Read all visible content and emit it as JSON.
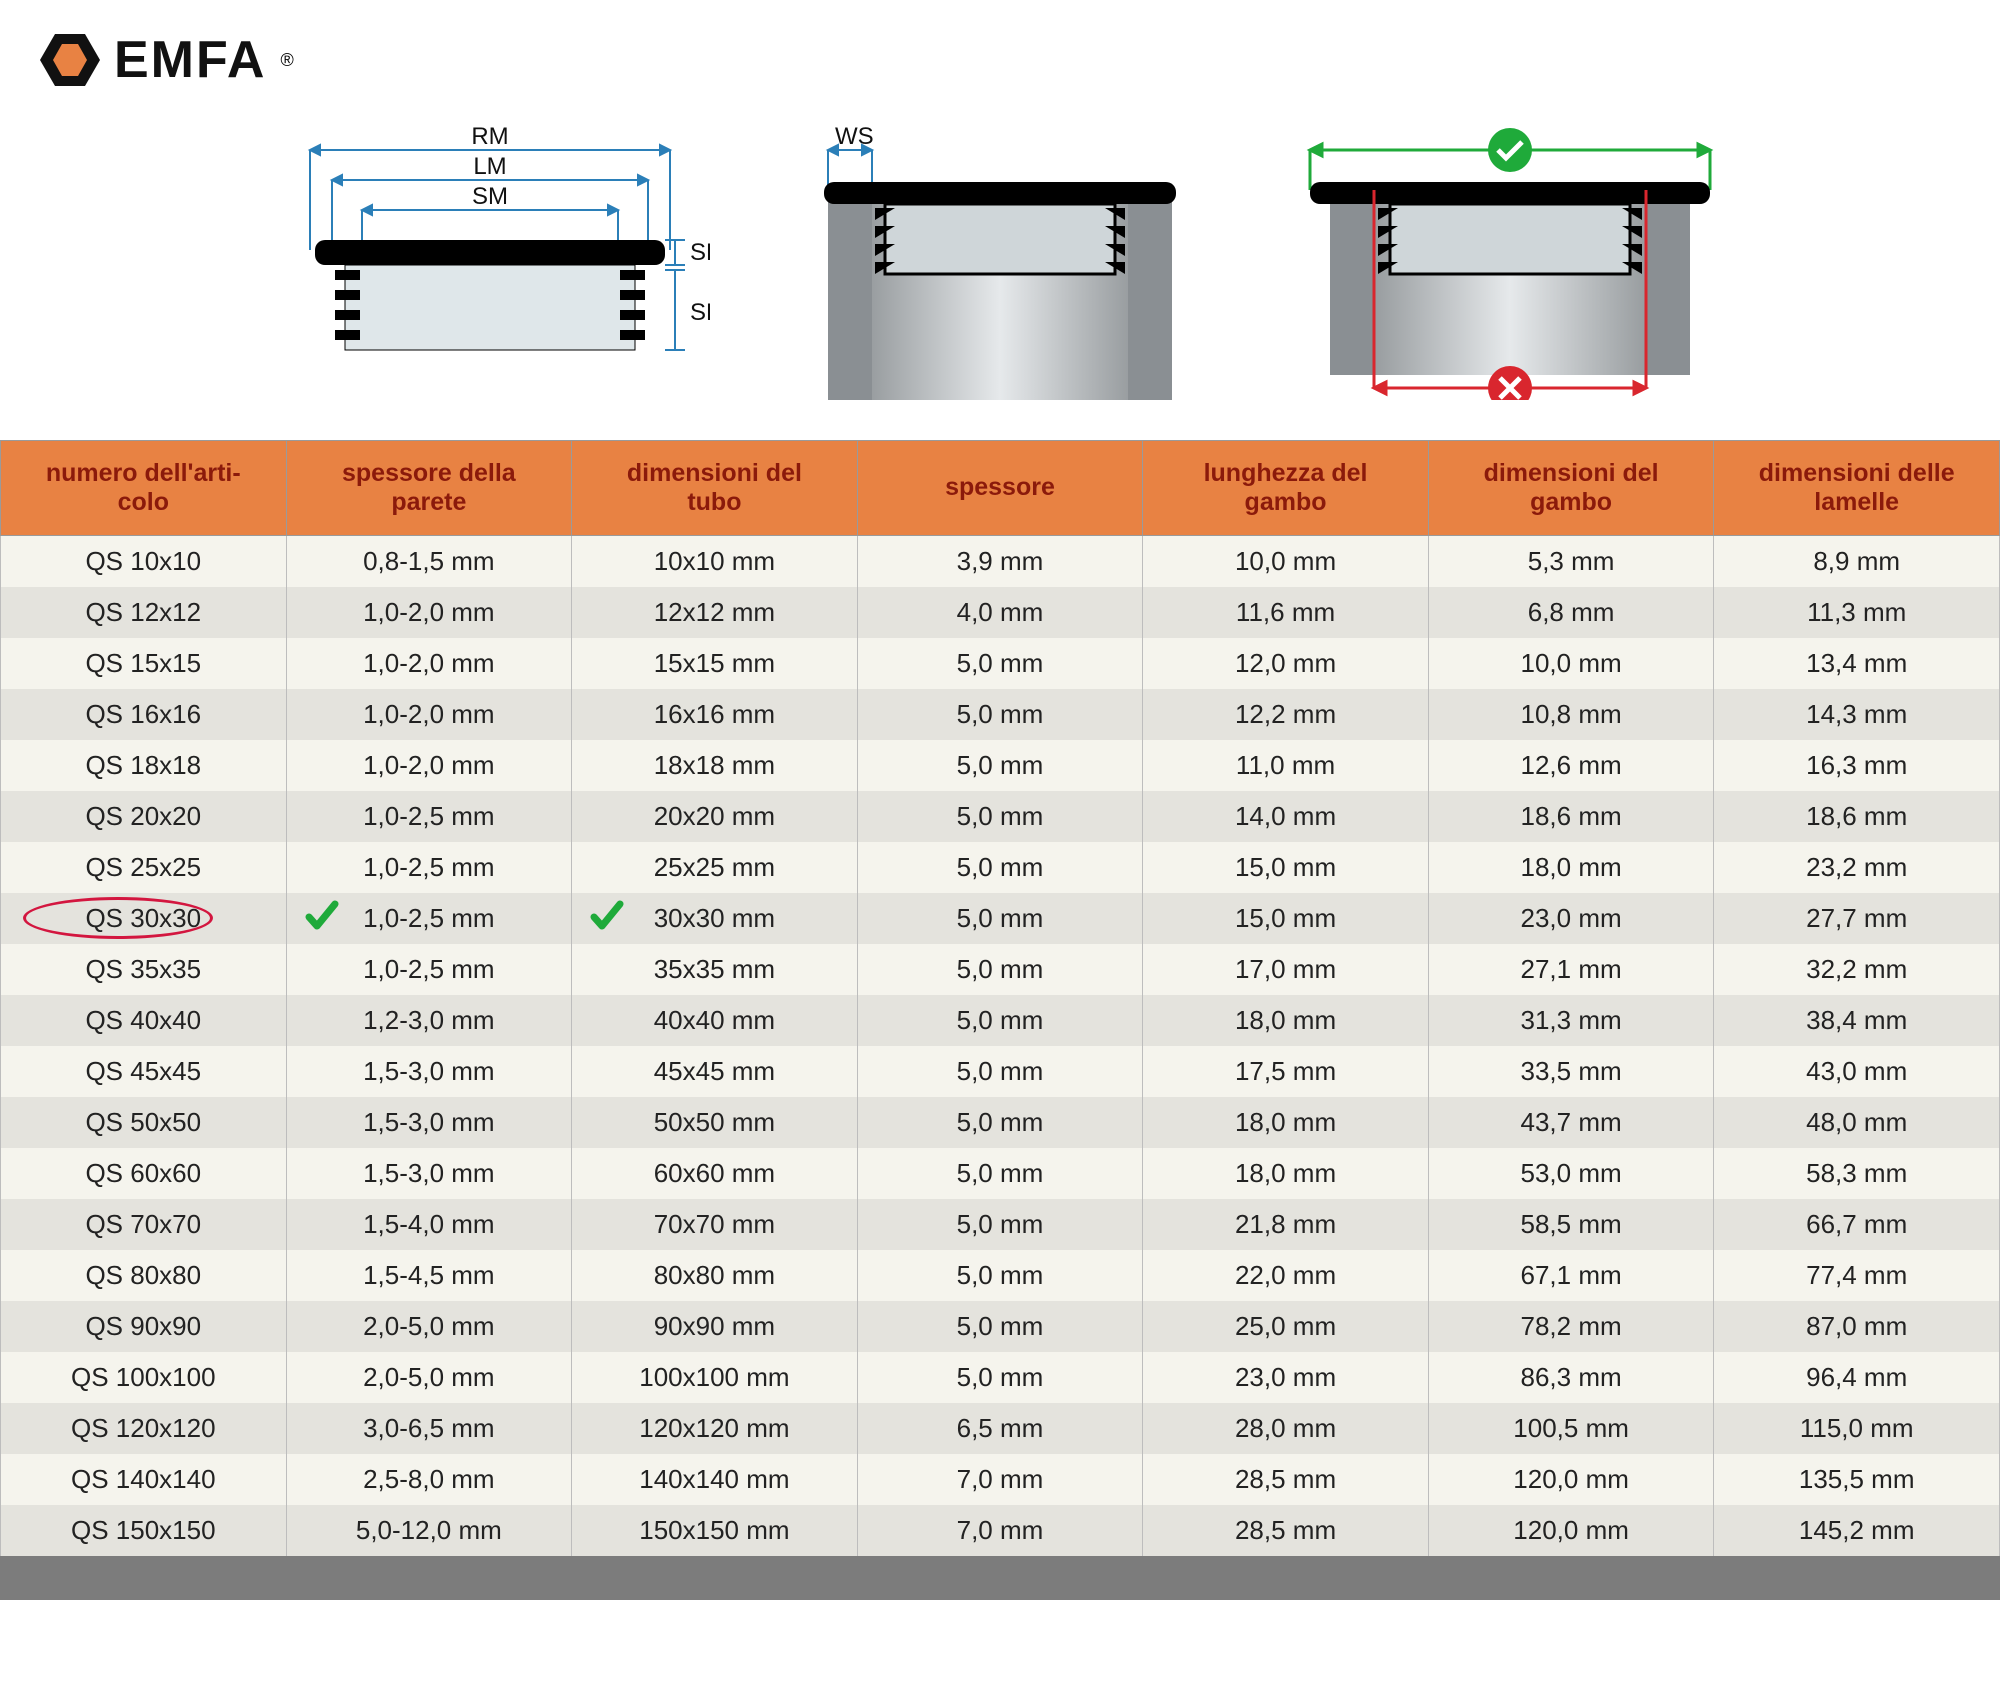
{
  "brand": {
    "name": "EMFA",
    "registered": "®",
    "hex_color": "#e88243"
  },
  "diagrams": {
    "d1_labels": {
      "RM": "RM",
      "LM": "LM",
      "SM": "SM",
      "SK": "SK",
      "SE": "SE"
    },
    "d2_labels": {
      "WS": "WS"
    },
    "colors": {
      "dim_line": "#2b7fb8",
      "cap": "#000000",
      "tube_light": "#d9dde0",
      "tube_dark": "#8f9498",
      "ok_green": "#1faa3a",
      "bad_red": "#d9262e"
    }
  },
  "table": {
    "header_bg": "#e88243",
    "header_fg": "#8b1a0b",
    "row_odd_bg": "#f5f4ed",
    "row_even_bg": "#e4e3dd",
    "border": "#bdbdbd",
    "highlight_row_index": 7,
    "highlight_ring_color": "#d3163f",
    "check_color": "#1faa3a",
    "columns": [
      "numero dell'arti-\ncolo",
      "spessore della\nparete",
      "dimensioni del\ntubo",
      "spessore",
      "lunghezza del\ngambo",
      "dimensioni del\ngambo",
      "dimensioni delle\nlamelle"
    ],
    "rows": [
      [
        "QS 10x10",
        "0,8-1,5 mm",
        "10x10 mm",
        "3,9 mm",
        "10,0 mm",
        "5,3 mm",
        "8,9 mm"
      ],
      [
        "QS 12x12",
        "1,0-2,0 mm",
        "12x12 mm",
        "4,0 mm",
        "11,6 mm",
        "6,8 mm",
        "11,3 mm"
      ],
      [
        "QS 15x15",
        "1,0-2,0 mm",
        "15x15 mm",
        "5,0 mm",
        "12,0 mm",
        "10,0 mm",
        "13,4 mm"
      ],
      [
        "QS 16x16",
        "1,0-2,0 mm",
        "16x16 mm",
        "5,0 mm",
        "12,2 mm",
        "10,8 mm",
        "14,3 mm"
      ],
      [
        "QS 18x18",
        "1,0-2,0 mm",
        "18x18 mm",
        "5,0 mm",
        "11,0 mm",
        "12,6 mm",
        "16,3 mm"
      ],
      [
        "QS 20x20",
        "1,0-2,5 mm",
        "20x20 mm",
        "5,0 mm",
        "14,0 mm",
        "18,6 mm",
        "18,6 mm"
      ],
      [
        "QS 25x25",
        "1,0-2,5 mm",
        "25x25 mm",
        "5,0 mm",
        "15,0 mm",
        "18,0 mm",
        "23,2 mm"
      ],
      [
        "QS 30x30",
        "1,0-2,5 mm",
        "30x30 mm",
        "5,0 mm",
        "15,0 mm",
        "23,0 mm",
        "27,7 mm"
      ],
      [
        "QS 35x35",
        "1,0-2,5 mm",
        "35x35 mm",
        "5,0 mm",
        "17,0 mm",
        "27,1 mm",
        "32,2 mm"
      ],
      [
        "QS 40x40",
        "1,2-3,0 mm",
        "40x40 mm",
        "5,0 mm",
        "18,0 mm",
        "31,3 mm",
        "38,4 mm"
      ],
      [
        "QS 45x45",
        "1,5-3,0 mm",
        "45x45 mm",
        "5,0 mm",
        "17,5 mm",
        "33,5 mm",
        "43,0 mm"
      ],
      [
        "QS 50x50",
        "1,5-3,0 mm",
        "50x50 mm",
        "5,0 mm",
        "18,0 mm",
        "43,7 mm",
        "48,0 mm"
      ],
      [
        "QS 60x60",
        "1,5-3,0 mm",
        "60x60 mm",
        "5,0 mm",
        "18,0 mm",
        "53,0 mm",
        "58,3 mm"
      ],
      [
        "QS 70x70",
        "1,5-4,0 mm",
        "70x70 mm",
        "5,0 mm",
        "21,8 mm",
        "58,5 mm",
        "66,7 mm"
      ],
      [
        "QS 80x80",
        "1,5-4,5 mm",
        "80x80 mm",
        "5,0 mm",
        "22,0 mm",
        "67,1 mm",
        "77,4 mm"
      ],
      [
        "QS 90x90",
        "2,0-5,0 mm",
        "90x90 mm",
        "5,0 mm",
        "25,0 mm",
        "78,2 mm",
        "87,0 mm"
      ],
      [
        "QS 100x100",
        "2,0-5,0 mm",
        "100x100 mm",
        "5,0 mm",
        "23,0 mm",
        "86,3 mm",
        "96,4 mm"
      ],
      [
        "QS 120x120",
        "3,0-6,5 mm",
        "120x120 mm",
        "6,5 mm",
        "28,0 mm",
        "100,5 mm",
        "115,0 mm"
      ],
      [
        "QS 140x140",
        "2,5-8,0 mm",
        "140x140 mm",
        "7,0 mm",
        "28,5 mm",
        "120,0 mm",
        "135,5 mm"
      ],
      [
        "QS 150x150",
        "5,0-12,0 mm",
        "150x150 mm",
        "7,0 mm",
        "28,5 mm",
        "120,0 mm",
        "145,2 mm"
      ]
    ]
  }
}
